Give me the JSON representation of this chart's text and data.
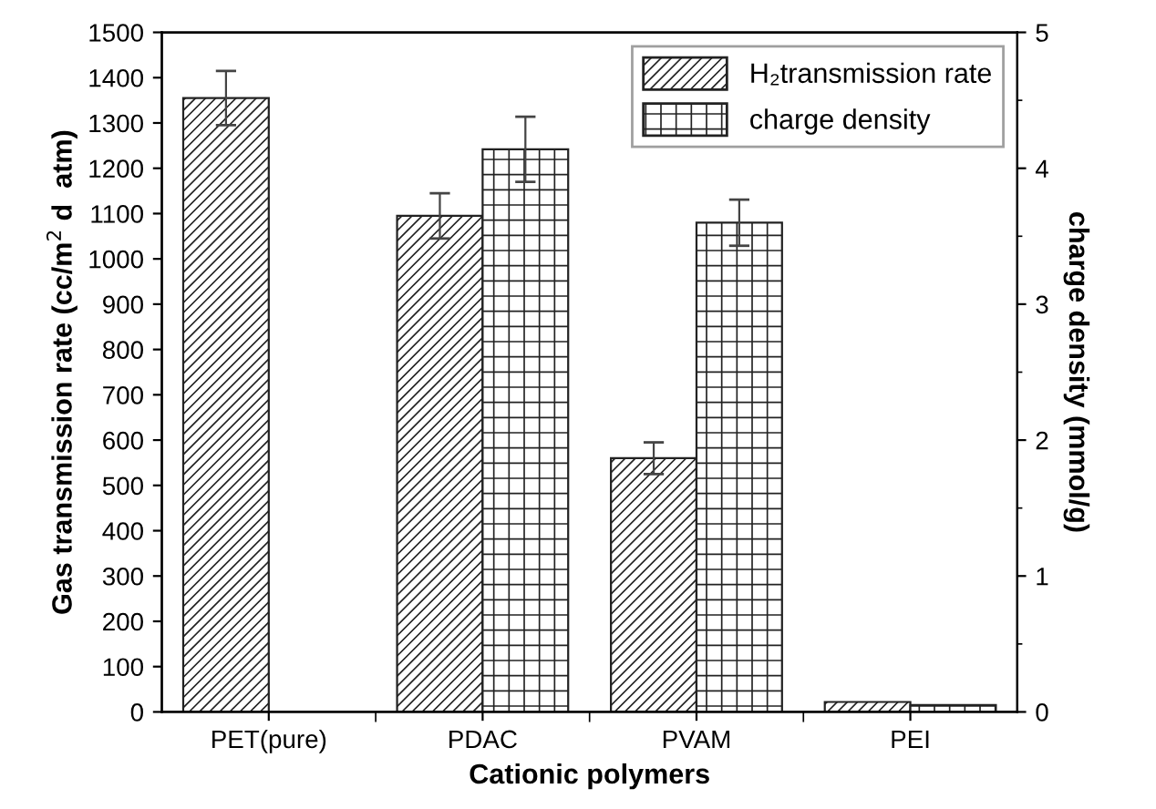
{
  "chart_data": {
    "type": "bar",
    "xlabel": "Cationic polymers",
    "ylabel": "Gas transmission rate (cc/m$^{2}$ d  atm)",
    "y2label": "charge density (mmol/g)",
    "categories": [
      "PET(pure)",
      "PDAC",
      "PVAM",
      "PEI"
    ],
    "series": [
      {
        "name": "H₂transmission rate",
        "color": "#222222",
        "values": [
          1355,
          1095,
          560,
          22
        ],
        "errors": [
          60,
          50,
          35,
          null
        ]
      },
      {
        "name": "charge density",
        "color": "#222222",
        "axis": "y2",
        "values": [
          null,
          4.14,
          3.6,
          0.05
        ],
        "errors": [
          null,
          0.24,
          0.17,
          null
        ]
      }
    ],
    "ylim": [
      0,
      1500
    ],
    "yticks": [
      0,
      100,
      200,
      300,
      400,
      500,
      600,
      700,
      800,
      900,
      1000,
      1100,
      1200,
      1300,
      1400,
      1500
    ],
    "y2lim": [
      0,
      5
    ],
    "y2ticks": [
      0,
      {
        "value": 0.5,
        "label": null
      },
      1,
      {
        "value": 1.5,
        "label": null
      },
      2,
      {
        "value": 2.5,
        "label": null
      },
      3,
      {
        "value": 3.5,
        "label": null
      },
      4,
      {
        "value": 4.5,
        "label": null
      },
      5
    ],
    "legend": "top right",
    "grid": false
  }
}
